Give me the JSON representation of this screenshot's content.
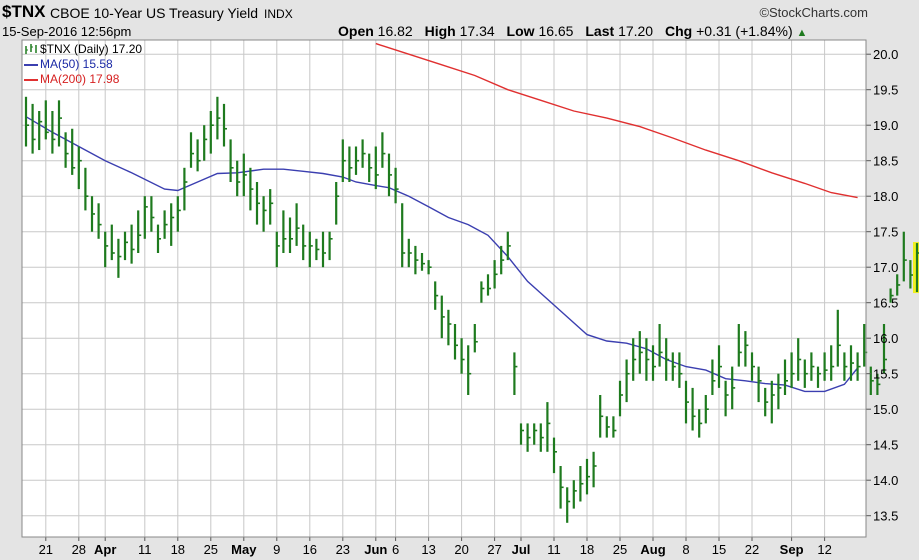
{
  "header": {
    "symbol": "$TNX",
    "name": "CBOE 10-Year US Treasury Yield",
    "exchange": "INDX",
    "copyright": "©StockCharts.com",
    "datetime": "15-Sep-2016 12:56pm",
    "open_label": "Open",
    "open_value": "16.82",
    "high_label": "High",
    "high_value": "17.34",
    "low_label": "Low",
    "low_value": "16.65",
    "last_label": "Last",
    "last_value": "17.20",
    "chg_label": "Chg",
    "chg_value": "+0.31 (+1.84%)",
    "chg_arrow": "▲"
  },
  "legend": {
    "price": "$TNX (Daily) 17.20",
    "ma50": "MA(50) 15.58",
    "ma200": "MA(200) 17.98"
  },
  "colors": {
    "price": "#1e7a1e",
    "ma50": "#3b3fb0",
    "ma200": "#e03030",
    "last_bar_bg": "#f0f020",
    "grid": "#c8c8c8",
    "plot_bg": "#ffffff"
  },
  "chart_data": {
    "type": "ohlc",
    "title": "$TNX CBOE 10-Year US Treasury Yield",
    "ylim": [
      13.2,
      20.2
    ],
    "yticks": [
      13.5,
      14.0,
      14.5,
      15.0,
      15.5,
      16.0,
      16.5,
      17.0,
      17.5,
      18.0,
      18.5,
      19.0,
      19.5,
      20.0
    ],
    "grid": true,
    "x_tick_labels": [
      {
        "i": 3,
        "label": "21",
        "bold": false
      },
      {
        "i": 8,
        "label": "28",
        "bold": false
      },
      {
        "i": 12,
        "label": "Apr",
        "bold": true
      },
      {
        "i": 18,
        "label": "11",
        "bold": false
      },
      {
        "i": 23,
        "label": "18",
        "bold": false
      },
      {
        "i": 28,
        "label": "25",
        "bold": false
      },
      {
        "i": 33,
        "label": "May",
        "bold": true
      },
      {
        "i": 38,
        "label": "9",
        "bold": false
      },
      {
        "i": 43,
        "label": "16",
        "bold": false
      },
      {
        "i": 48,
        "label": "23",
        "bold": false
      },
      {
        "i": 53,
        "label": "Jun",
        "bold": true
      },
      {
        "i": 56,
        "label": "6",
        "bold": false
      },
      {
        "i": 61,
        "label": "13",
        "bold": false
      },
      {
        "i": 66,
        "label": "20",
        "bold": false
      },
      {
        "i": 71,
        "label": "27",
        "bold": false
      },
      {
        "i": 75,
        "label": "Jul",
        "bold": true
      },
      {
        "i": 80,
        "label": "11",
        "bold": false
      },
      {
        "i": 85,
        "label": "18",
        "bold": false
      },
      {
        "i": 90,
        "label": "25",
        "bold": false
      },
      {
        "i": 95,
        "label": "Aug",
        "bold": true
      },
      {
        "i": 100,
        "label": "8",
        "bold": false
      },
      {
        "i": 105,
        "label": "15",
        "bold": false
      },
      {
        "i": 110,
        "label": "22",
        "bold": false
      },
      {
        "i": 116,
        "label": "Sep",
        "bold": true
      },
      {
        "i": 121,
        "label": "12",
        "bold": false
      }
    ],
    "bars": [
      [
        19.4,
        18.7,
        19.0
      ],
      [
        19.3,
        18.6,
        18.8
      ],
      [
        19.2,
        18.65,
        19.05
      ],
      [
        19.35,
        18.8,
        18.9
      ],
      [
        19.2,
        18.6,
        18.8
      ],
      [
        19.35,
        18.7,
        19.1
      ],
      [
        18.9,
        18.4,
        18.6
      ],
      [
        18.95,
        18.3,
        18.4
      ],
      [
        18.7,
        18.1,
        18.5
      ],
      [
        18.4,
        17.8,
        18.0
      ],
      [
        18.0,
        17.5,
        17.75
      ],
      [
        17.9,
        17.4,
        17.6
      ],
      [
        17.5,
        17.0,
        17.3
      ],
      [
        17.6,
        17.1,
        17.2
      ],
      [
        17.4,
        16.85,
        17.15
      ],
      [
        17.5,
        17.1,
        17.35
      ],
      [
        17.6,
        17.05,
        17.25
      ],
      [
        17.8,
        17.2,
        17.45
      ],
      [
        18.0,
        17.4,
        17.85
      ],
      [
        18.0,
        17.5,
        17.7
      ],
      [
        17.6,
        17.2,
        17.4
      ],
      [
        17.8,
        17.4,
        17.6
      ],
      [
        17.9,
        17.3,
        17.7
      ],
      [
        18.0,
        17.5,
        17.8
      ],
      [
        18.4,
        17.8,
        18.2
      ],
      [
        18.9,
        18.4,
        18.6
      ],
      [
        18.8,
        18.35,
        18.5
      ],
      [
        19.0,
        18.5,
        18.8
      ],
      [
        19.2,
        18.6,
        19.0
      ],
      [
        19.4,
        18.8,
        19.1
      ],
      [
        19.3,
        18.7,
        18.95
      ],
      [
        18.8,
        18.2,
        18.4
      ],
      [
        18.5,
        18.0,
        18.2
      ],
      [
        18.6,
        18.0,
        18.3
      ],
      [
        18.4,
        17.8,
        18.1
      ],
      [
        18.2,
        17.6,
        17.9
      ],
      [
        18.0,
        17.5,
        17.8
      ],
      [
        18.1,
        17.6,
        17.9
      ],
      [
        17.5,
        17.0,
        17.3
      ],
      [
        17.8,
        17.2,
        17.4
      ],
      [
        17.7,
        17.2,
        17.4
      ],
      [
        17.9,
        17.3,
        17.55
      ],
      [
        17.6,
        17.1,
        17.3
      ],
      [
        17.5,
        17.0,
        17.3
      ],
      [
        17.4,
        17.1,
        17.25
      ],
      [
        17.5,
        17.0,
        17.2
      ],
      [
        17.5,
        17.1,
        17.4
      ],
      [
        18.2,
        17.6,
        18.0
      ],
      [
        18.8,
        18.2,
        18.5
      ],
      [
        18.7,
        18.2,
        18.4
      ],
      [
        18.7,
        18.3,
        18.5
      ],
      [
        18.8,
        18.4,
        18.6
      ],
      [
        18.6,
        18.2,
        18.4
      ],
      [
        18.7,
        18.1,
        18.3
      ],
      [
        18.9,
        18.4,
        18.6
      ],
      [
        18.6,
        18.0,
        18.3
      ],
      [
        18.4,
        17.9,
        18.1
      ],
      [
        17.9,
        17.0,
        17.2
      ],
      [
        17.4,
        17.0,
        17.2
      ],
      [
        17.3,
        16.9,
        17.1
      ],
      [
        17.2,
        16.95,
        17.05
      ],
      [
        17.1,
        16.9,
        17.0
      ],
      [
        16.8,
        16.4,
        16.6
      ],
      [
        16.6,
        16.0,
        16.3
      ],
      [
        16.4,
        15.9,
        16.2
      ],
      [
        16.2,
        15.7,
        15.9
      ],
      [
        16.0,
        15.5,
        15.7
      ],
      [
        15.9,
        15.2,
        15.5
      ],
      [
        16.2,
        15.8,
        15.95
      ],
      [
        16.8,
        16.5,
        16.7
      ],
      [
        16.9,
        16.6,
        16.7
      ],
      [
        17.1,
        16.7,
        16.9
      ],
      [
        17.3,
        16.9,
        17.1
      ],
      [
        17.5,
        17.1,
        17.3
      ],
      [
        15.8,
        15.2,
        15.6
      ],
      [
        14.8,
        14.5,
        14.7
      ],
      [
        14.8,
        14.4,
        14.6
      ],
      [
        14.8,
        14.5,
        14.7
      ],
      [
        14.8,
        14.4,
        14.6
      ],
      [
        15.1,
        14.4,
        14.8
      ],
      [
        14.6,
        14.1,
        14.4
      ],
      [
        14.2,
        13.6,
        13.9
      ],
      [
        13.9,
        13.4,
        13.7
      ],
      [
        14.0,
        13.6,
        13.85
      ],
      [
        14.2,
        13.7,
        13.95
      ],
      [
        14.3,
        13.8,
        14.05
      ],
      [
        14.4,
        13.9,
        14.2
      ],
      [
        15.2,
        14.6,
        14.9
      ],
      [
        14.9,
        14.6,
        14.75
      ],
      [
        14.9,
        14.6,
        14.7
      ],
      [
        15.4,
        14.9,
        15.2
      ],
      [
        15.7,
        15.1,
        15.5
      ],
      [
        16.0,
        15.4,
        15.7
      ],
      [
        16.1,
        15.5,
        15.8
      ],
      [
        16.0,
        15.4,
        15.7
      ],
      [
        15.9,
        15.4,
        15.6
      ],
      [
        16.2,
        15.6,
        15.8
      ],
      [
        16.0,
        15.4,
        15.7
      ],
      [
        15.8,
        15.4,
        15.6
      ],
      [
        15.8,
        15.3,
        15.5
      ],
      [
        15.4,
        14.8,
        15.1
      ],
      [
        15.3,
        14.7,
        14.9
      ],
      [
        15.0,
        14.6,
        14.8
      ],
      [
        15.2,
        14.8,
        15.0
      ],
      [
        15.7,
        15.2,
        15.4
      ],
      [
        15.9,
        15.3,
        15.6
      ],
      [
        15.4,
        14.9,
        15.2
      ],
      [
        15.6,
        15.0,
        15.3
      ],
      [
        16.2,
        15.6,
        15.8
      ],
      [
        16.1,
        15.6,
        15.9
      ],
      [
        15.8,
        15.4,
        15.6
      ],
      [
        15.6,
        15.1,
        15.4
      ],
      [
        15.3,
        14.9,
        15.1
      ],
      [
        15.4,
        14.8,
        15.2
      ],
      [
        15.5,
        15.0,
        15.3
      ],
      [
        15.7,
        15.2,
        15.4
      ],
      [
        15.8,
        15.3,
        15.5
      ],
      [
        16.0,
        15.4,
        15.7
      ],
      [
        15.7,
        15.3,
        15.5
      ],
      [
        15.8,
        15.4,
        15.6
      ],
      [
        15.6,
        15.3,
        15.5
      ],
      [
        15.8,
        15.4,
        15.55
      ],
      [
        15.9,
        15.4,
        15.6
      ],
      [
        16.4,
        15.6,
        15.9
      ],
      [
        15.8,
        15.4,
        15.6
      ],
      [
        15.9,
        15.4,
        15.65
      ],
      [
        15.8,
        15.4,
        15.6
      ],
      [
        16.2,
        15.6,
        15.8
      ],
      [
        15.6,
        15.2,
        15.4
      ],
      [
        15.5,
        15.2,
        15.35
      ],
      [
        16.2,
        15.5,
        15.7
      ],
      [
        16.7,
        16.5,
        16.6
      ],
      [
        16.9,
        16.6,
        16.75
      ],
      [
        17.5,
        16.8,
        17.1
      ],
      [
        17.1,
        16.7,
        16.89
      ],
      [
        17.34,
        16.65,
        17.2
      ]
    ],
    "ma50": [
      [
        0,
        19.12
      ],
      [
        4,
        18.9
      ],
      [
        8,
        18.7
      ],
      [
        12,
        18.5
      ],
      [
        16,
        18.33
      ],
      [
        21,
        18.1
      ],
      [
        23,
        18.08
      ],
      [
        26,
        18.2
      ],
      [
        29,
        18.32
      ],
      [
        32,
        18.33
      ],
      [
        36,
        18.38
      ],
      [
        39,
        18.38
      ],
      [
        42,
        18.35
      ],
      [
        45,
        18.32
      ],
      [
        48,
        18.27
      ],
      [
        50,
        18.2
      ],
      [
        53,
        18.15
      ],
      [
        55,
        18.12
      ],
      [
        58,
        18.0
      ],
      [
        61,
        17.85
      ],
      [
        64,
        17.7
      ],
      [
        67,
        17.6
      ],
      [
        70,
        17.45
      ],
      [
        73,
        17.15
      ],
      [
        76,
        16.8
      ],
      [
        79,
        16.55
      ],
      [
        82,
        16.3
      ],
      [
        85,
        16.05
      ],
      [
        88,
        15.96
      ],
      [
        91,
        15.93
      ],
      [
        94,
        15.85
      ],
      [
        97,
        15.7
      ],
      [
        100,
        15.6
      ],
      [
        103,
        15.55
      ],
      [
        106,
        15.43
      ],
      [
        109,
        15.4
      ],
      [
        112,
        15.36
      ],
      [
        115,
        15.34
      ],
      [
        118,
        15.25
      ],
      [
        121,
        15.25
      ],
      [
        124,
        15.35
      ],
      [
        126,
        15.58
      ]
    ],
    "ma200": [
      [
        53,
        20.15
      ],
      [
        58,
        20.0
      ],
      [
        63,
        19.85
      ],
      [
        68,
        19.7
      ],
      [
        73,
        19.5
      ],
      [
        78,
        19.35
      ],
      [
        83,
        19.2
      ],
      [
        88,
        19.1
      ],
      [
        93,
        18.98
      ],
      [
        98,
        18.82
      ],
      [
        103,
        18.65
      ],
      [
        108,
        18.5
      ],
      [
        113,
        18.33
      ],
      [
        118,
        18.18
      ],
      [
        122,
        18.05
      ],
      [
        126,
        17.98
      ]
    ]
  }
}
